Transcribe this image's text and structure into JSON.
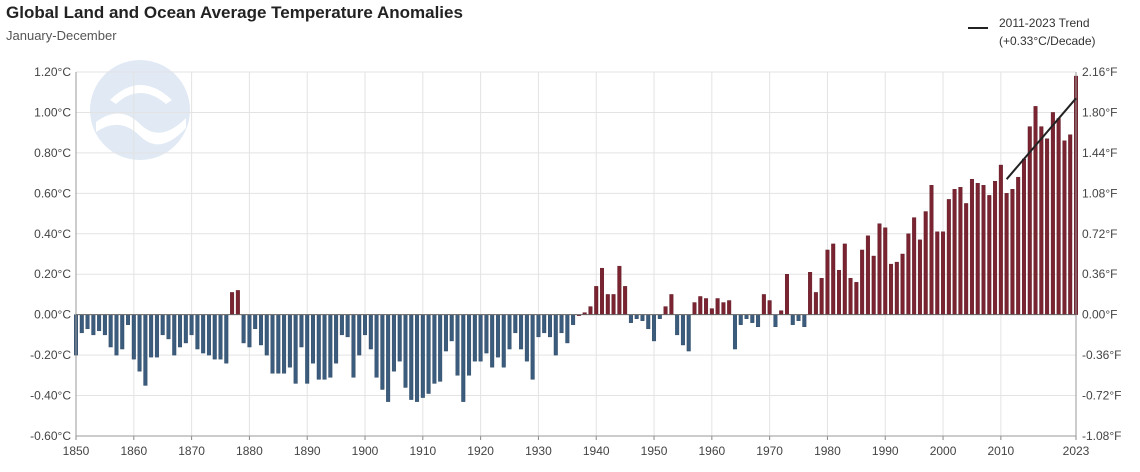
{
  "chart_data": {
    "type": "bar",
    "title": "Global Land and Ocean Average Temperature Anomalies",
    "subtitle": "January-December",
    "legend": {
      "label": "2011-2023 Trend",
      "sublabel": "(+0.33°C/Decade)",
      "placement": "top-right"
    },
    "ylim": [
      -0.6,
      1.2
    ],
    "y_ticks": [
      -0.6,
      -0.4,
      -0.2,
      0.0,
      0.2,
      0.4,
      0.6,
      0.8,
      1.0,
      1.2
    ],
    "y_tick_labels": [
      "-0.60°C",
      "-0.40°C",
      "-0.20°C",
      "0.00°C",
      "0.20°C",
      "0.40°C",
      "0.60°C",
      "0.80°C",
      "1.00°C",
      "1.20°C"
    ],
    "y2_tick_labels": [
      "-1.08°F",
      "-0.72°F",
      "-0.36°F",
      "0.00°F",
      "0.36°F",
      "0.72°F",
      "1.08°F",
      "1.44°F",
      "1.80°F",
      "2.16°F"
    ],
    "x_ticks": [
      1850,
      1860,
      1870,
      1880,
      1890,
      1900,
      1910,
      1920,
      1930,
      1940,
      1950,
      1960,
      1970,
      1980,
      1990,
      2000,
      2010,
      2023
    ],
    "x_range": [
      1850,
      2023
    ],
    "grid": true,
    "colors": {
      "positive": "#7b2431",
      "negative": "#3b5c7d",
      "trend": "#222222"
    },
    "x": [
      1850,
      1851,
      1852,
      1853,
      1854,
      1855,
      1856,
      1857,
      1858,
      1859,
      1860,
      1861,
      1862,
      1863,
      1864,
      1865,
      1866,
      1867,
      1868,
      1869,
      1870,
      1871,
      1872,
      1873,
      1874,
      1875,
      1876,
      1877,
      1878,
      1879,
      1880,
      1881,
      1882,
      1883,
      1884,
      1885,
      1886,
      1887,
      1888,
      1889,
      1890,
      1891,
      1892,
      1893,
      1894,
      1895,
      1896,
      1897,
      1898,
      1899,
      1900,
      1901,
      1902,
      1903,
      1904,
      1905,
      1906,
      1907,
      1908,
      1909,
      1910,
      1911,
      1912,
      1913,
      1914,
      1915,
      1916,
      1917,
      1918,
      1919,
      1920,
      1921,
      1922,
      1923,
      1924,
      1925,
      1926,
      1927,
      1928,
      1929,
      1930,
      1931,
      1932,
      1933,
      1934,
      1935,
      1936,
      1937,
      1938,
      1939,
      1940,
      1941,
      1942,
      1943,
      1944,
      1945,
      1946,
      1947,
      1948,
      1949,
      1950,
      1951,
      1952,
      1953,
      1954,
      1955,
      1956,
      1957,
      1958,
      1959,
      1960,
      1961,
      1962,
      1963,
      1964,
      1965,
      1966,
      1967,
      1968,
      1969,
      1970,
      1971,
      1972,
      1973,
      1974,
      1975,
      1976,
      1977,
      1978,
      1979,
      1980,
      1981,
      1982,
      1983,
      1984,
      1985,
      1986,
      1987,
      1988,
      1989,
      1990,
      1991,
      1992,
      1993,
      1994,
      1995,
      1996,
      1997,
      1998,
      1999,
      2000,
      2001,
      2002,
      2003,
      2004,
      2005,
      2006,
      2007,
      2008,
      2009,
      2010,
      2011,
      2012,
      2013,
      2014,
      2015,
      2016,
      2017,
      2018,
      2019,
      2020,
      2021,
      2022,
      2023
    ],
    "values": [
      -0.2,
      -0.09,
      -0.07,
      -0.1,
      -0.08,
      -0.1,
      -0.16,
      -0.2,
      -0.17,
      -0.05,
      -0.22,
      -0.28,
      -0.35,
      -0.21,
      -0.21,
      -0.1,
      -0.12,
      -0.2,
      -0.16,
      -0.14,
      -0.1,
      -0.17,
      -0.19,
      -0.2,
      -0.22,
      -0.22,
      -0.24,
      0.11,
      0.12,
      -0.14,
      -0.16,
      -0.07,
      -0.15,
      -0.2,
      -0.29,
      -0.29,
      -0.29,
      -0.26,
      -0.34,
      -0.16,
      -0.34,
      -0.24,
      -0.32,
      -0.32,
      -0.31,
      -0.24,
      -0.1,
      -0.11,
      -0.31,
      -0.2,
      -0.1,
      -0.17,
      -0.31,
      -0.37,
      -0.43,
      -0.28,
      -0.23,
      -0.36,
      -0.42,
      -0.43,
      -0.41,
      -0.39,
      -0.34,
      -0.33,
      -0.18,
      -0.13,
      -0.3,
      -0.43,
      -0.3,
      -0.23,
      -0.23,
      -0.19,
      -0.26,
      -0.21,
      -0.26,
      -0.17,
      -0.09,
      -0.17,
      -0.23,
      -0.32,
      -0.11,
      -0.09,
      -0.11,
      -0.2,
      -0.09,
      -0.14,
      -0.05,
      0.0,
      0.01,
      0.04,
      0.14,
      0.23,
      0.1,
      0.1,
      0.24,
      0.14,
      -0.04,
      -0.02,
      -0.03,
      -0.07,
      -0.13,
      -0.02,
      0.04,
      0.1,
      -0.1,
      -0.15,
      -0.18,
      0.06,
      0.09,
      0.08,
      0.03,
      0.08,
      0.06,
      0.07,
      -0.17,
      -0.05,
      -0.02,
      -0.04,
      -0.06,
      0.1,
      0.07,
      -0.06,
      0.02,
      0.2,
      -0.05,
      -0.03,
      -0.06,
      0.21,
      0.11,
      0.18,
      0.32,
      0.35,
      0.22,
      0.35,
      0.18,
      0.16,
      0.32,
      0.39,
      0.29,
      0.45,
      0.43,
      0.25,
      0.26,
      0.3,
      0.4,
      0.48,
      0.37,
      0.51,
      0.64,
      0.41,
      0.41,
      0.57,
      0.62,
      0.63,
      0.55,
      0.67,
      0.65,
      0.64,
      0.59,
      0.66,
      0.74,
      0.6,
      0.62,
      0.68,
      0.77,
      0.93,
      1.03,
      0.93,
      0.87,
      1.0,
      0.97,
      0.86,
      0.89,
      1.18
    ],
    "trend": {
      "start_year": 2011,
      "end_year": 2023,
      "start_value": 0.67,
      "end_value": 1.07
    }
  }
}
